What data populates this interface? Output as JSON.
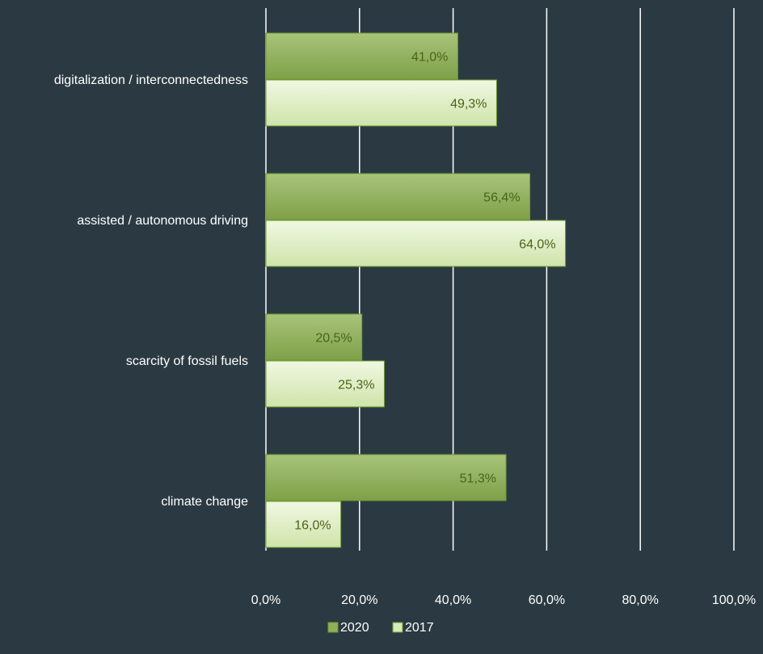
{
  "chart_data": {
    "type": "bar",
    "orientation": "horizontal",
    "categories": [
      "digitalization / interconnectedness",
      "assisted / autonomous driving",
      "scarcity of fossil fuels",
      "climate change"
    ],
    "series": [
      {
        "name": "2020",
        "values": [
          41.0,
          56.4,
          20.5,
          51.3
        ],
        "labels": [
          "41,0%",
          "56,4%",
          "20,5%",
          "51,3%"
        ],
        "color": "#8fb05a"
      },
      {
        "name": "2017",
        "values": [
          49.3,
          64.0,
          25.3,
          16.0
        ],
        "labels": [
          "49,3%",
          "64,0%",
          "25,3%",
          "16,0%"
        ],
        "color": "#d8eab8"
      }
    ],
    "xlim": [
      0,
      100
    ],
    "x_ticks": [
      0,
      20,
      40,
      60,
      80,
      100
    ],
    "x_tick_labels": [
      "0,0%",
      "20,0%",
      "40,0%",
      "60,0%",
      "80,0%",
      "100,0%"
    ],
    "grid": true,
    "legend_position": "bottom",
    "colors": {
      "background": "#2b3a42",
      "gridline": "#ffffff",
      "label_text": "#4a6418",
      "bar_border": "#6f9a34"
    }
  }
}
